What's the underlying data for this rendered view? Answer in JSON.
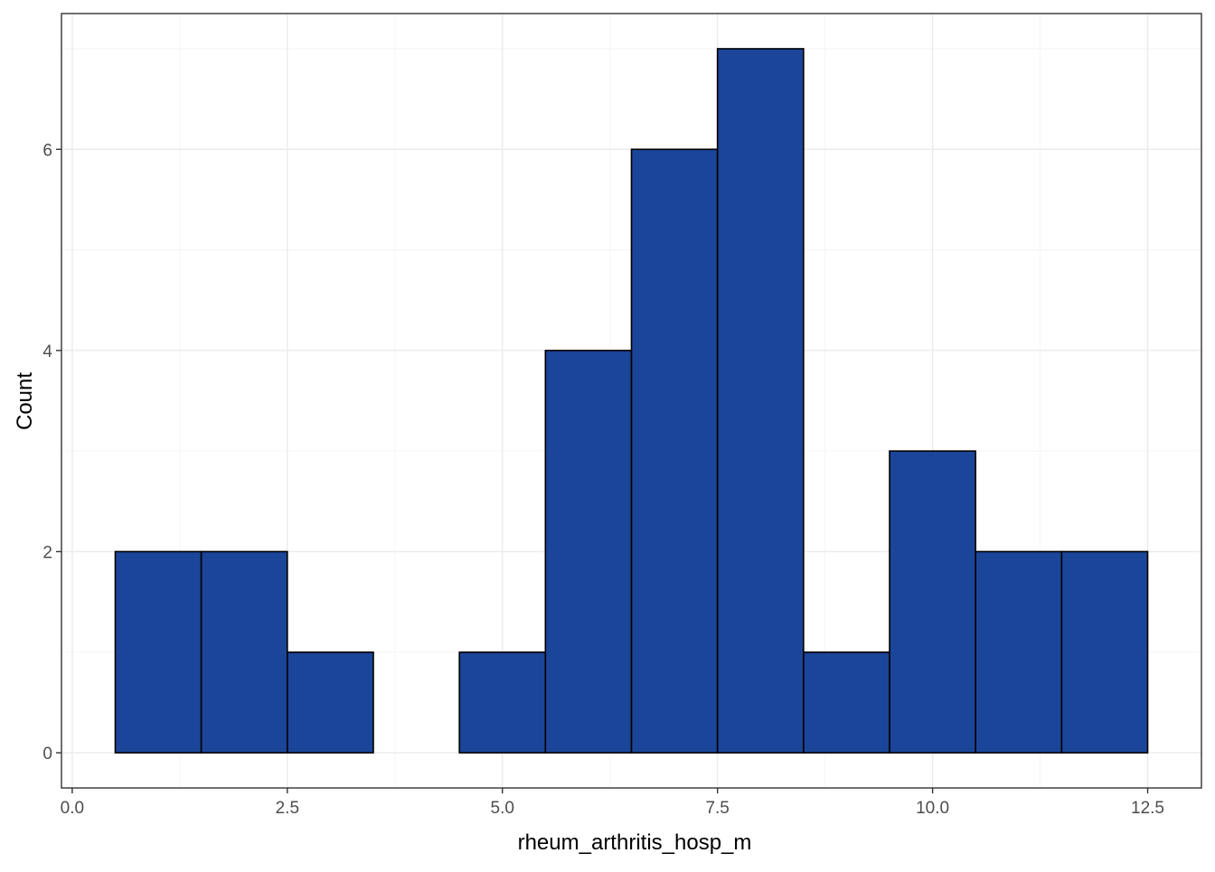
{
  "chart_data": {
    "type": "bar",
    "subtype": "histogram",
    "title": "",
    "xlabel": "rheum_arthritis_hosp_m",
    "ylabel": "Count",
    "bins": [
      {
        "x_start": 0.5,
        "x_end": 1.5,
        "count": 2
      },
      {
        "x_start": 1.5,
        "x_end": 2.5,
        "count": 2
      },
      {
        "x_start": 2.5,
        "x_end": 3.5,
        "count": 1
      },
      {
        "x_start": 3.5,
        "x_end": 4.5,
        "count": 0
      },
      {
        "x_start": 4.5,
        "x_end": 5.5,
        "count": 1
      },
      {
        "x_start": 5.5,
        "x_end": 6.5,
        "count": 4
      },
      {
        "x_start": 6.5,
        "x_end": 7.5,
        "count": 6
      },
      {
        "x_start": 7.5,
        "x_end": 8.5,
        "count": 7
      },
      {
        "x_start": 8.5,
        "x_end": 9.5,
        "count": 1
      },
      {
        "x_start": 9.5,
        "x_end": 10.5,
        "count": 3
      },
      {
        "x_start": 10.5,
        "x_end": 11.5,
        "count": 2
      },
      {
        "x_start": 11.5,
        "x_end": 12.5,
        "count": 2
      }
    ],
    "xlim": [
      -0.125,
      13.125
    ],
    "ylim": [
      -0.35,
      7.35
    ],
    "x_ticks": [
      0.0,
      2.5,
      5.0,
      7.5,
      10.0,
      12.5
    ],
    "x_tick_labels": [
      "0.0",
      "2.5",
      "5.0",
      "7.5",
      "10.0",
      "12.5"
    ],
    "y_ticks": [
      0,
      2,
      4,
      6
    ],
    "y_tick_labels": [
      "0",
      "2",
      "4",
      "6"
    ],
    "grid": true,
    "legend": "none",
    "colors": {
      "bar_fill": "#1a4599",
      "bar_outline": "#000000",
      "grid_major": "#ebebeb",
      "grid_minor": "#f5f5f5",
      "panel_border": "#333333",
      "background": "#ffffff"
    }
  }
}
